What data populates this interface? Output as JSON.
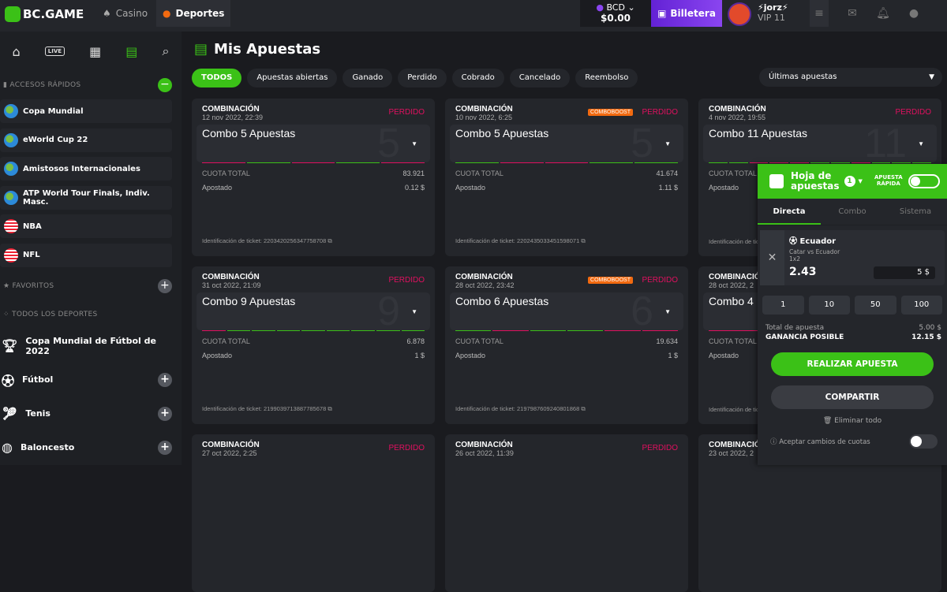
{
  "header": {
    "logo": "BC.GAME",
    "nav": [
      {
        "label": "Casino",
        "icon": "casino-icon"
      },
      {
        "label": "Deportes",
        "icon": "basketball-icon",
        "active": true
      }
    ],
    "currency": "BCD",
    "balance": "$0.00",
    "wallet": "Billetera",
    "username": "⚡jorz⚡",
    "vip": "VIP 11"
  },
  "sidebar": {
    "quick_access": "ACCESOS RÁPIDOS",
    "quick_items": [
      {
        "label": "Copa Mundial",
        "icon": "globe"
      },
      {
        "label": "eWorld Cup 22",
        "icon": "globe"
      },
      {
        "label": "Amistosos Internacionales",
        "icon": "globe"
      },
      {
        "label": "ATP World Tour Finals, Indiv. Masc.",
        "icon": "globe"
      },
      {
        "label": "NBA",
        "icon": "us-flag"
      },
      {
        "label": "NFL",
        "icon": "us-flag"
      }
    ],
    "favorites": "FAVORITOS",
    "all_sports": "TODOS LOS DEPORTES",
    "sports": [
      {
        "label": "Copa Mundial de Fútbol de 2022",
        "icon": "trophy-icon",
        "plus": false
      },
      {
        "label": "Fútbol",
        "icon": "soccer-ball-icon",
        "plus": true
      },
      {
        "label": "Tenis",
        "icon": "tennis-icon",
        "plus": true
      },
      {
        "label": "Baloncesto",
        "icon": "basketball-icon",
        "plus": true
      }
    ],
    "live": "LIVE"
  },
  "main": {
    "title": "Mis Apuestas",
    "filters": [
      "TODOS",
      "Apuestas abiertas",
      "Ganado",
      "Perdido",
      "Cobrado",
      "Cancelado",
      "Reembolso"
    ],
    "sort": "Últimas apuestas",
    "labels": {
      "type": "COMBINACIÓN",
      "total": "CUOTA TOTAL",
      "staked": "Apostado",
      "ticket": "Identificación de ticket:",
      "boost": "COMBOBOOST"
    },
    "cards": [
      {
        "date": "12 nov 2022, 22:39",
        "status": "PERDIDO",
        "boost": false,
        "combo": "Combo 5 Apuestas",
        "count": "5",
        "legs": "lwlwl",
        "odds": "83.921",
        "stake": "0.12 $",
        "ticket": "2203420256347758708"
      },
      {
        "date": "10 nov 2022, 6:25",
        "status": "PERDIDO",
        "boost": true,
        "combo": "Combo 5 Apuestas",
        "count": "5",
        "legs": "wllww",
        "odds": "41.674",
        "stake": "1.11 $",
        "ticket": "2202435033451598071"
      },
      {
        "date": "4 nov 2022, 19:55",
        "status": "PERDIDO",
        "boost": false,
        "combo": "Combo 11 Apuestas",
        "count": "11",
        "legs": "wwlllwwlwww",
        "odds": "",
        "stake": "",
        "ticket": ""
      },
      {
        "date": "31 oct 2022, 21:09",
        "status": "PERDIDO",
        "boost": false,
        "combo": "Combo 9 Apuestas",
        "count": "9",
        "legs": "lwwwwwwww",
        "odds": "6.878",
        "stake": "1 $",
        "ticket": "2199039713887785678"
      },
      {
        "date": "28 oct 2022, 23:42",
        "status": "PERDIDO",
        "boost": true,
        "combo": "Combo 6 Apuestas",
        "count": "6",
        "legs": "wlwwll",
        "odds": "19.634",
        "stake": "1 $",
        "ticket": "2197987609240801868"
      },
      {
        "date": "28 oct 2022, 2",
        "status": "",
        "boost": false,
        "combo": "Combo 4",
        "count": "",
        "legs": "l",
        "odds": "",
        "stake": "",
        "ticket": ""
      },
      {
        "date": "27 oct 2022, 2:25",
        "status": "PERDIDO",
        "boost": false,
        "combo": "",
        "count": "",
        "legs": "",
        "odds": "",
        "stake": "",
        "ticket": ""
      },
      {
        "date": "26 oct 2022, 11:39",
        "status": "PERDIDO",
        "boost": false,
        "combo": "",
        "count": "",
        "legs": "",
        "odds": "",
        "stake": "",
        "ticket": ""
      },
      {
        "date": "23 oct 2022, 2",
        "status": "",
        "boost": false,
        "combo": "",
        "count": "",
        "legs": "",
        "odds": "",
        "stake": "",
        "ticket": ""
      }
    ]
  },
  "betslip": {
    "title1": "Hoja de",
    "title2": "apuestas",
    "count": "1",
    "quick1": "APUESTA",
    "quick2": "RÁPIDA",
    "tabs": [
      "Directa",
      "Combo",
      "Sistema"
    ],
    "selection": {
      "team": "Ecuador",
      "match": "Catar vs Ecuador",
      "market": "1x2",
      "odds": "2.43",
      "stake": "5 $"
    },
    "quick_amounts": [
      "1",
      "10",
      "50",
      "100"
    ],
    "total_label": "Total de apuesta",
    "total": "5.00 $",
    "win_label": "GANANCIA POSIBLE",
    "win": "12.15 $",
    "place": "REALIZAR APUESTA",
    "share": "COMPARTIR",
    "delete": "Eliminar todo",
    "accept": "Aceptar cambios de cuotas"
  },
  "colors": {
    "accent": "#3bc117",
    "lost": "#e0105f",
    "won": "#3bc117",
    "wallet": "#6322d5",
    "boost": "#f26a10"
  }
}
